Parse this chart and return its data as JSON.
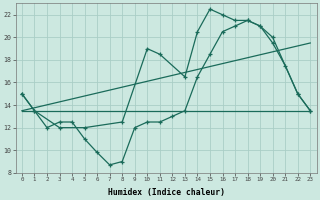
{
  "xlabel": "Humidex (Indice chaleur)",
  "background_color": "#cce8e0",
  "grid_color": "#aacec6",
  "line_color": "#1a6b5a",
  "xlim": [
    -0.5,
    23.5
  ],
  "ylim": [
    8,
    23
  ],
  "xticks": [
    0,
    1,
    2,
    3,
    4,
    5,
    6,
    7,
    8,
    9,
    10,
    11,
    12,
    13,
    14,
    15,
    16,
    17,
    18,
    19,
    20,
    21,
    22,
    23
  ],
  "yticks": [
    8,
    10,
    12,
    14,
    16,
    18,
    20,
    22
  ],
  "series1_x": [
    0,
    1,
    2,
    3,
    4,
    5,
    6,
    7,
    8,
    9,
    10,
    11,
    12,
    13,
    14,
    15,
    16,
    17,
    18,
    19,
    20,
    21,
    22,
    23
  ],
  "series1_y": [
    15.0,
    13.5,
    12.0,
    12.5,
    12.5,
    11.0,
    9.8,
    8.7,
    9.0,
    12.0,
    12.5,
    12.5,
    13.0,
    13.5,
    16.5,
    18.5,
    20.5,
    21.0,
    21.5,
    21.0,
    19.5,
    17.5,
    15.0,
    13.5
  ],
  "series2_x": [
    0,
    1,
    3,
    5,
    8,
    10,
    11,
    13,
    14,
    15,
    16,
    17,
    18,
    19,
    20,
    22,
    23
  ],
  "series2_y": [
    15.0,
    13.5,
    12.0,
    12.0,
    12.5,
    19.0,
    18.5,
    16.5,
    20.5,
    22.5,
    22.0,
    21.5,
    21.5,
    21.0,
    20.0,
    15.0,
    13.5
  ],
  "series3_x": [
    0,
    23
  ],
  "series3_y": [
    13.5,
    13.5
  ],
  "series4_x": [
    0,
    23
  ],
  "series4_y": [
    13.5,
    19.5
  ]
}
